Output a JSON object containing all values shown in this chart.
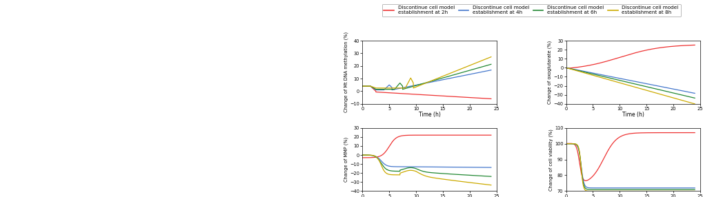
{
  "legend_labels": [
    "Discontinue cell model\nestablishment at 2h",
    "Discontinue cell model\nestablishment at 4h",
    "Discontinue cell model\nestablishment at 6h",
    "Discontinue cell model\nestablishment at 8h"
  ],
  "line_colors": [
    "#EE3333",
    "#4477CC",
    "#228833",
    "#CCAA00"
  ],
  "time_max": 24,
  "plot1_ylabel": "Change of Mt DNA methylation (%)",
  "plot2_ylabel": "Change of oxoglutarate (%)",
  "plot3_ylabel": "Change of MMP (%)",
  "plot4_ylabel": "Change of cell viability (%)",
  "xlabel": "Time (h)",
  "background_color": "#ffffff",
  "ylim1": [
    -10,
    40
  ],
  "ylim2": [
    -40,
    30
  ],
  "ylim3": [
    -40,
    30
  ],
  "ylim4": [
    70,
    110
  ]
}
